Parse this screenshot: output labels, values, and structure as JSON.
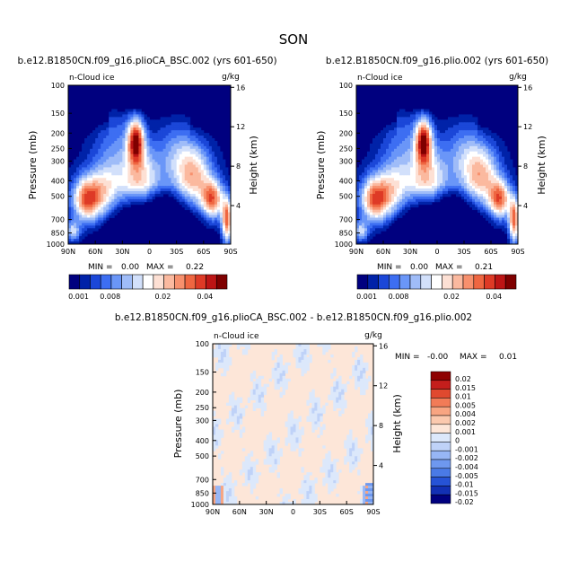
{
  "page": {
    "season": "SON",
    "diff_title": "b.e12.B1850CN.f09_g16.plioCA_BSC.002 - b.e12.B1850CN.f09_g16.plio.002"
  },
  "colors": {
    "main_scale": [
      "#00007f",
      "#0022a8",
      "#1b47d8",
      "#3d6ef2",
      "#6a96f8",
      "#9fbcf8",
      "#d2e0fb",
      "#ffffff",
      "#fde0d4",
      "#fbb99f",
      "#f7906d",
      "#ef6641",
      "#de3a26",
      "#bd1515",
      "#7f0000"
    ],
    "diff_scale": [
      "#00007f",
      "#1230b4",
      "#2653d6",
      "#4a7ae6",
      "#6e98ef",
      "#97b6f5",
      "#bfd2f8",
      "#dce8fb",
      "#fde6d8",
      "#fbc9ae",
      "#f8a582",
      "#f27b57",
      "#e0492f",
      "#c41e1c",
      "#8e0000"
    ]
  },
  "chart_data": [
    {
      "id": "left",
      "type": "heatmap",
      "title": "b.e12.B1850CN.f09_g16.plioCA_BSC.002 (yrs 601-650)",
      "left_label": "n-Cloud ice",
      "units": "g/kg",
      "xlabel": "",
      "ylabel": "Pressure (mb)",
      "y2label": "Height (km)",
      "x_ticks": [
        "90N",
        "60N",
        "30N",
        "0",
        "30S",
        "60S",
        "90S"
      ],
      "x_values": [
        90,
        60,
        30,
        0,
        -30,
        -60,
        -90
      ],
      "y_ticks": [
        "100",
        "150",
        "200",
        "250",
        "300",
        "400",
        "500",
        "700",
        "850",
        "1000"
      ],
      "y_values": [
        100,
        150,
        200,
        250,
        300,
        400,
        500,
        700,
        850,
        1000
      ],
      "y2_ticks": [
        "16",
        "12",
        "8",
        "4"
      ],
      "y2_values": [
        16,
        12,
        8,
        4
      ],
      "ylim": [
        1000,
        100
      ],
      "min_label": "MIN =",
      "min": "0.00",
      "max_label": "MAX =",
      "max": "0.22",
      "colorbar_labels": [
        "0.001",
        "0.008",
        "0.02",
        "0.04"
      ],
      "colorbar_label_index": [
        0,
        3,
        8,
        12
      ]
    },
    {
      "id": "right",
      "type": "heatmap",
      "title": "b.e12.B1850CN.f09_g16.plio.002 (yrs 601-650)",
      "left_label": "n-Cloud ice",
      "units": "g/kg",
      "ylabel": "Pressure (mb)",
      "y2label": "Height (km)",
      "x_ticks": [
        "90N",
        "60N",
        "30N",
        "0",
        "30S",
        "60S",
        "90S"
      ],
      "x_values": [
        90,
        60,
        30,
        0,
        -30,
        -60,
        -90
      ],
      "y_ticks": [
        "100",
        "150",
        "200",
        "250",
        "300",
        "400",
        "500",
        "700",
        "850",
        "1000"
      ],
      "y_values": [
        100,
        150,
        200,
        250,
        300,
        400,
        500,
        700,
        850,
        1000
      ],
      "y2_ticks": [
        "16",
        "12",
        "8",
        "4"
      ],
      "y2_values": [
        16,
        12,
        8,
        4
      ],
      "ylim": [
        1000,
        100
      ],
      "min_label": "MIN =",
      "min": "0.00",
      "max_label": "MAX =",
      "max": "0.21",
      "colorbar_labels": [
        "0.001",
        "0.008",
        "0.02",
        "0.04"
      ],
      "colorbar_label_index": [
        0,
        3,
        8,
        12
      ]
    },
    {
      "id": "diff",
      "type": "heatmap",
      "title": "b.e12.B1850CN.f09_g16.plioCA_BSC.002 - b.e12.B1850CN.f09_g16.plio.002",
      "left_label": "n-Cloud ice",
      "units": "g/kg",
      "ylabel": "Pressure (mb)",
      "y2label": "Height (km)",
      "x_ticks": [
        "90N",
        "60N",
        "30N",
        "0",
        "30S",
        "60S",
        "90S"
      ],
      "x_values": [
        90,
        60,
        30,
        0,
        -30,
        -60,
        -90
      ],
      "y_ticks": [
        "100",
        "150",
        "200",
        "250",
        "300",
        "400",
        "500",
        "700",
        "850",
        "1000"
      ],
      "y_values": [
        100,
        150,
        200,
        250,
        300,
        400,
        500,
        700,
        850,
        1000
      ],
      "y2_ticks": [
        "16",
        "12",
        "8",
        "4"
      ],
      "y2_values": [
        16,
        12,
        8,
        4
      ],
      "ylim": [
        1000,
        100
      ],
      "min_label": "MIN =",
      "min": "-0.00",
      "max_label": "MAX =",
      "max": "0.01",
      "legend_labels": [
        "0.02",
        "0.015",
        "0.01",
        "0.005",
        "0.004",
        "0.002",
        "0.001",
        "0",
        "-0.001",
        "-0.002",
        "-0.004",
        "-0.005",
        "-0.01",
        "-0.015",
        "-0.02"
      ]
    }
  ]
}
